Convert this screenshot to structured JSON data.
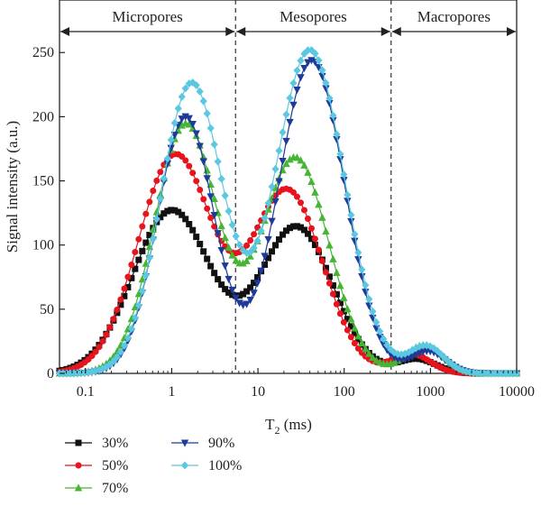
{
  "chart_data": {
    "type": "line",
    "title": "",
    "xlabel": "T",
    "xlabel_sub": "2",
    "xlabel_unit": " (ms)",
    "ylabel": "Signal intensity (a.u.)",
    "x_scale": "log",
    "xlim": [
      0.05,
      10000
    ],
    "ylim": [
      0,
      260
    ],
    "x_ticks": [
      0.1,
      1,
      10,
      100,
      1000,
      10000
    ],
    "x_tick_labels": [
      "0.1",
      "1",
      "10",
      "100",
      "1000",
      "10000"
    ],
    "y_ticks": [
      0,
      50,
      100,
      150,
      200,
      250
    ],
    "y_tick_labels": [
      "0",
      "50",
      "100",
      "150",
      "200",
      "250"
    ],
    "grid": false,
    "legend_position": "bottom-left",
    "boundaries": [
      5.5,
      350
    ],
    "regions": [
      {
        "label": "Micropores",
        "from": 0.05,
        "to": 5.5
      },
      {
        "label": "Mesopores",
        "from": 5.5,
        "to": 350
      },
      {
        "label": "Macropores",
        "from": 350,
        "to": 10000
      }
    ],
    "series": [
      {
        "name": "30%",
        "color": "#111111",
        "marker": "square",
        "peaks": [
          {
            "a": 127,
            "mu": 1.0,
            "s": 0.45
          },
          {
            "a": 114,
            "mu": 28,
            "s": 0.42
          },
          {
            "a": 11,
            "mu": 700,
            "s": 0.22
          }
        ]
      },
      {
        "name": "50%",
        "color": "#e8131c",
        "marker": "circle",
        "peaks": [
          {
            "a": 170,
            "mu": 1.1,
            "s": 0.43
          },
          {
            "a": 142,
            "mu": 22,
            "s": 0.41
          },
          {
            "a": 15,
            "mu": 600,
            "s": 0.22
          }
        ]
      },
      {
        "name": "70%",
        "color": "#47b534",
        "marker": "triangle-up",
        "peaks": [
          {
            "a": 194,
            "mu": 1.45,
            "s": 0.36
          },
          {
            "a": 168,
            "mu": 27,
            "s": 0.39
          },
          {
            "a": 22,
            "mu": 850,
            "s": 0.22
          }
        ]
      },
      {
        "name": "90%",
        "color": "#1f3b99",
        "marker": "triangle-down",
        "peaks": [
          {
            "a": 200,
            "mu": 1.45,
            "s": 0.33
          },
          {
            "a": 244,
            "mu": 42,
            "s": 0.38
          },
          {
            "a": 17,
            "mu": 950,
            "s": 0.2
          }
        ]
      },
      {
        "name": "100%",
        "color": "#5bc8e1",
        "marker": "diamond",
        "peaks": [
          {
            "a": 226,
            "mu": 1.7,
            "s": 0.36
          },
          {
            "a": 252,
            "mu": 40,
            "s": 0.4
          },
          {
            "a": 21,
            "mu": 900,
            "s": 0.2
          }
        ]
      }
    ]
  }
}
